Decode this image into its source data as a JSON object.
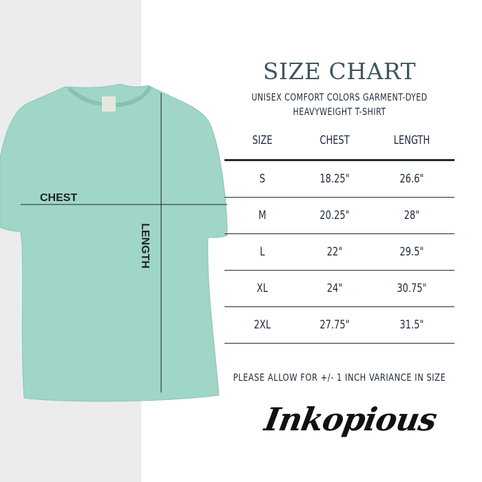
{
  "header": {
    "title": "SIZE CHART",
    "subtitle_line1": "UNISEX COMFORT COLORS GARMENT-DYED",
    "subtitle_line2": "HEAVYWEIGHT T-SHIRT"
  },
  "table": {
    "columns": [
      "SIZE",
      "CHEST",
      "LENGTH"
    ],
    "rows": [
      [
        "S",
        "18.25\"",
        "26.6\""
      ],
      [
        "M",
        "20.25\"",
        "28\""
      ],
      [
        "L",
        "22\"",
        "29.5\""
      ],
      [
        "XL",
        "24\"",
        "30.75\""
      ],
      [
        "2XL",
        "27.75\"",
        "31.5\""
      ]
    ]
  },
  "diagram": {
    "chest_label": "CHEST",
    "length_label": "LENGTH",
    "shirt_color": "#9fd6c8"
  },
  "note": "PLEASE ALLOW FOR +/- 1 INCH VARIANCE IN SIZE",
  "brand": {
    "logo_text": "Inkopious"
  }
}
